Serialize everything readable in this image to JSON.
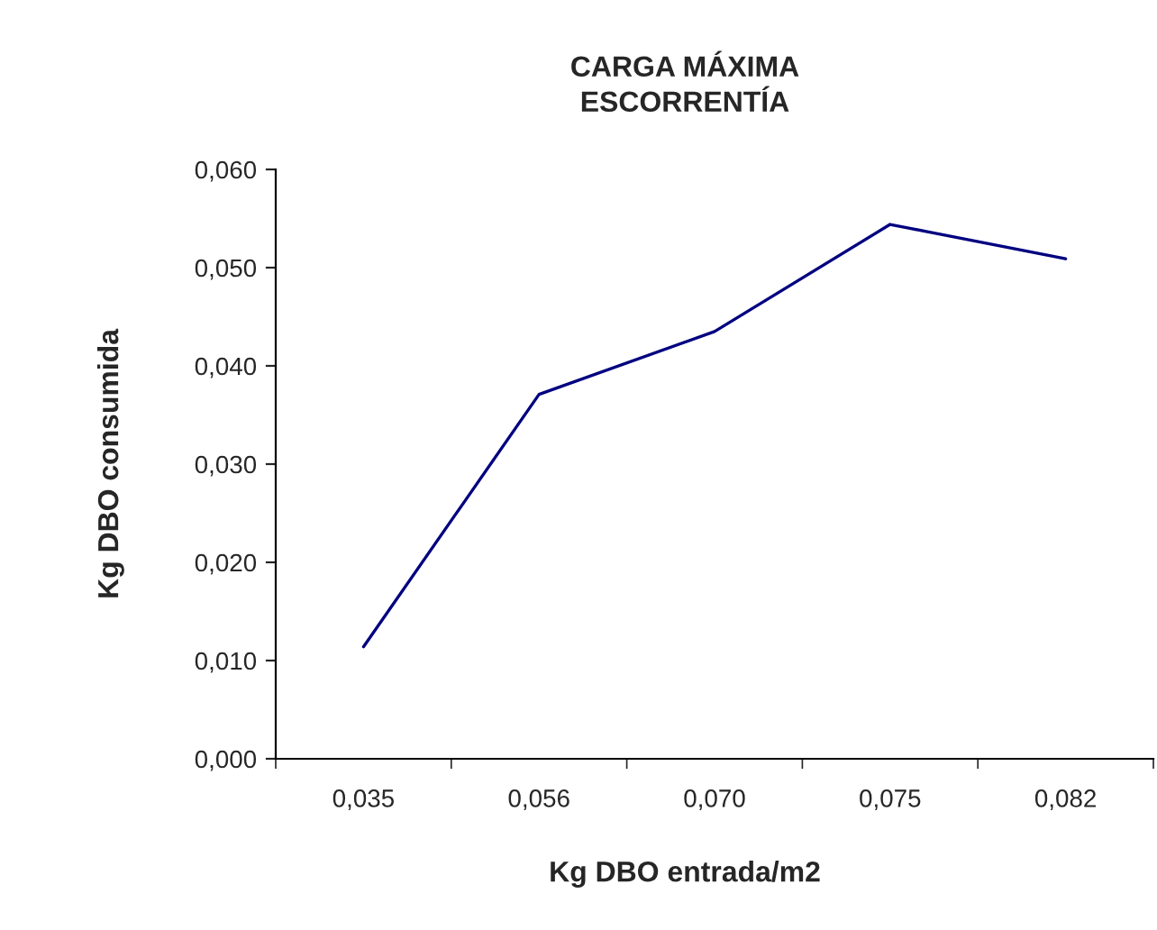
{
  "chart_data": {
    "type": "line",
    "title": "CARGA MÁXIMA\nESCORRENTÍA",
    "xlabel": "Kg DBO entrada/m2",
    "ylabel": "Kg DBO consumida",
    "categories": [
      "0,035",
      "0,056",
      "0,070",
      "0,075",
      "0,082"
    ],
    "series": [
      {
        "color": "#000080",
        "values": [
          0.0114,
          0.0371,
          0.0435,
          0.0544,
          0.0509
        ]
      }
    ],
    "ylim": [
      0,
      0.06
    ],
    "yticks": [
      {
        "value": 0,
        "label": "0,000"
      },
      {
        "value": 0.01,
        "label": "0,010"
      },
      {
        "value": 0.02,
        "label": "0,020"
      },
      {
        "value": 0.03,
        "label": "0,030"
      },
      {
        "value": 0.04,
        "label": "0,040"
      },
      {
        "value": 0.05,
        "label": "0,050"
      },
      {
        "value": 0.06,
        "label": "0,060"
      }
    ],
    "grid": false,
    "legend": false,
    "marker": "none",
    "line_style": "solid"
  }
}
